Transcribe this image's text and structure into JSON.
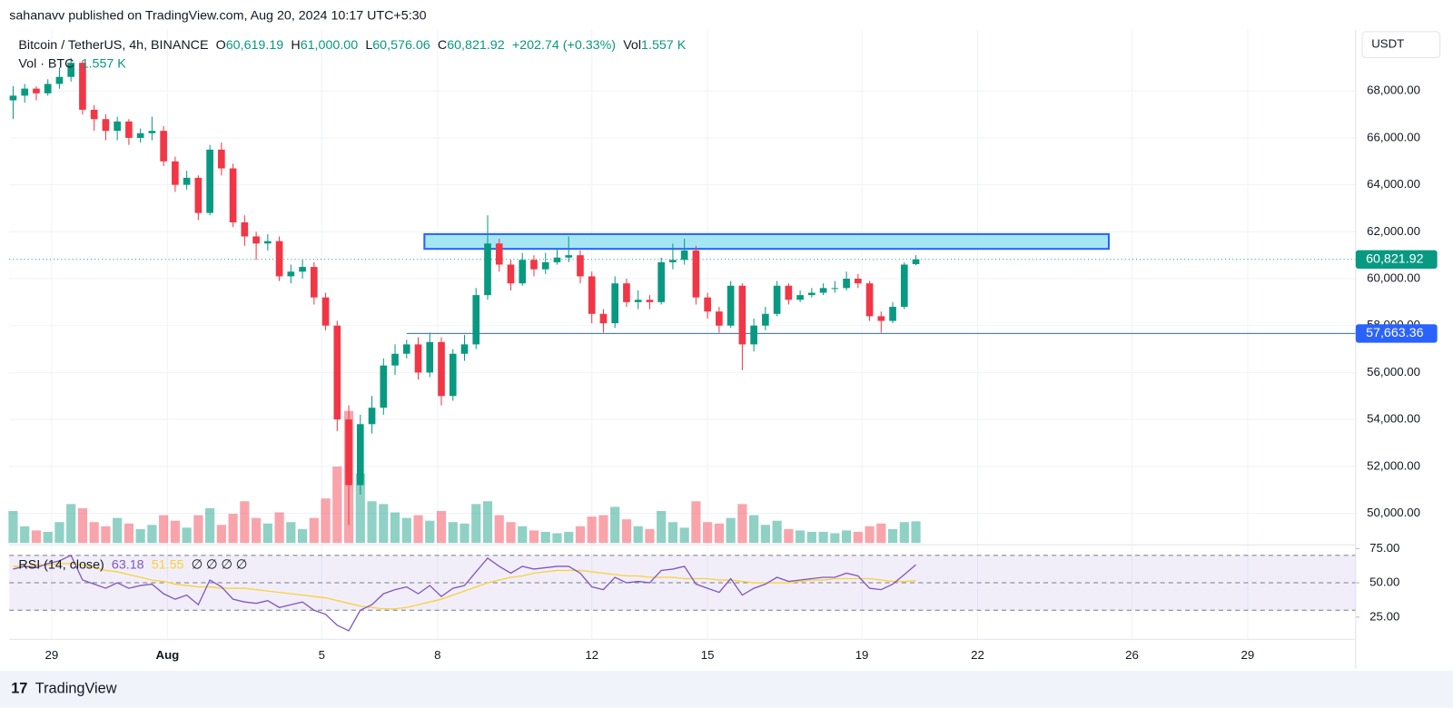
{
  "header": {
    "publisher": "sahanavv published on TradingView.com, Aug 20, 2024 10:17 UTC+5:30"
  },
  "footer": {
    "brand": "TradingView"
  },
  "chart_data": {
    "type": "candlestick",
    "title": "Bitcoin / TetherUS, 4h, BINANCE",
    "currency": "USDT",
    "legend": {
      "open_label": "O",
      "open": "60,619.19",
      "high_label": "H",
      "high": "61,000.00",
      "low_label": "L",
      "low": "60,576.06",
      "close_label": "C",
      "close": "60,821.92",
      "change": "+202.74 (+0.33%)",
      "vol_label": "Vol",
      "vol": "1.557 K"
    },
    "up_color": "#089981",
    "down_color": "#f23645",
    "grid": true,
    "x": [
      -1,
      -0.7,
      -0.4,
      -0.1,
      0.2,
      0.5,
      0.8,
      1.1,
      1.4,
      1.7,
      2,
      2.3,
      2.6,
      2.9,
      3.2,
      3.5,
      3.8,
      4.1,
      4.4,
      4.7,
      5,
      5.3,
      5.6,
      5.9,
      6.2,
      6.5,
      6.8,
      7.1,
      7.4,
      7.7,
      8,
      8.3,
      8.6,
      8.9,
      9.2,
      9.5,
      9.8,
      10.1,
      10.4,
      10.7,
      11,
      11.3,
      11.6,
      11.9,
      12.2,
      12.5,
      12.8,
      13.1,
      13.4,
      13.7,
      14,
      14.3,
      14.6,
      14.9,
      15.2,
      15.5,
      15.8,
      16.1,
      16.4,
      16.7,
      17,
      17.3,
      17.6,
      17.9,
      18.2,
      18.5,
      18.8,
      19.1,
      19.4,
      19.7,
      20,
      20.3,
      20.6,
      20.9,
      21.2,
      21.5,
      21.8,
      22.1,
      22.4
    ],
    "xlim": [
      -1.1,
      33.8
    ],
    "xticks": [
      {
        "value": 0,
        "label": "29"
      },
      {
        "value": 3,
        "label": "Aug"
      },
      {
        "value": 7,
        "label": "5"
      },
      {
        "value": 10,
        "label": "8"
      },
      {
        "value": 14,
        "label": "12"
      },
      {
        "value": 17,
        "label": "15"
      },
      {
        "value": 21,
        "label": "19"
      },
      {
        "value": 24,
        "label": "22"
      },
      {
        "value": 28,
        "label": "26"
      },
      {
        "value": 31,
        "label": "29"
      }
    ],
    "open": [
      67600,
      67800,
      68100,
      67900,
      68300,
      68600,
      69200,
      67200,
      66800,
      66300,
      66700,
      66000,
      66200,
      66300,
      65000,
      64000,
      64300,
      62800,
      65500,
      64700,
      62400,
      61800,
      61500,
      61600,
      60100,
      60300,
      60500,
      59200,
      58000,
      54000,
      51200,
      53800,
      54500,
      56300,
      56800,
      57200,
      56000,
      57300,
      55000,
      56800,
      57200,
      59300,
      61500,
      60600,
      59800,
      60800,
      60400,
      60700,
      60900,
      61000,
      60100,
      58500,
      58100,
      59800,
      59000,
      59100,
      59000,
      60700,
      60800,
      61200,
      59200,
      58600,
      58000,
      59700,
      57200,
      58000,
      58500,
      59700,
      59100,
      59300,
      59400,
      59600,
      59600,
      60000,
      59800,
      58400,
      58200,
      58800,
      60619.19
    ],
    "high": [
      68200,
      68300,
      68200,
      68500,
      69000,
      69400,
      69300,
      67400,
      67000,
      66900,
      66800,
      66400,
      66900,
      66500,
      65200,
      64600,
      64400,
      65700,
      65800,
      64900,
      62700,
      62000,
      61900,
      61800,
      60600,
      60800,
      60700,
      59400,
      58200,
      54600,
      54200,
      55000,
      56600,
      57200,
      57400,
      57500,
      57700,
      57500,
      57000,
      57600,
      59600,
      62700,
      61700,
      60800,
      61100,
      61000,
      61100,
      61300,
      61800,
      61200,
      60300,
      58700,
      60100,
      60000,
      59500,
      59300,
      60900,
      61500,
      61700,
      61400,
      59400,
      58800,
      59900,
      59800,
      58300,
      58800,
      59900,
      59800,
      59500,
      59600,
      59800,
      59900,
      60300,
      60200,
      59900,
      58600,
      59000,
      60700,
      61000
    ],
    "low": [
      66800,
      67500,
      67600,
      67800,
      68100,
      68400,
      67000,
      66300,
      65900,
      65900,
      65700,
      65800,
      65900,
      64800,
      63700,
      63800,
      62500,
      62700,
      64400,
      62200,
      61400,
      60800,
      61200,
      59900,
      59800,
      60000,
      58900,
      57800,
      53500,
      49500,
      50800,
      53400,
      54200,
      55900,
      56600,
      55700,
      55800,
      54600,
      54800,
      56500,
      57000,
      59100,
      60300,
      59500,
      59700,
      60100,
      60200,
      60600,
      60700,
      59800,
      58100,
      57700,
      57900,
      58800,
      58700,
      58700,
      58900,
      60400,
      60600,
      58900,
      58300,
      57700,
      57900,
      56100,
      56900,
      57800,
      58400,
      58900,
      59000,
      59200,
      59300,
      59400,
      59500,
      59600,
      58200,
      57700,
      58100,
      58700,
      60576.06
    ],
    "close": [
      67800,
      68100,
      67900,
      68300,
      68600,
      69200,
      67200,
      66800,
      66300,
      66700,
      66000,
      66200,
      66300,
      65000,
      64000,
      64300,
      62800,
      65500,
      64700,
      62400,
      61800,
      61500,
      61600,
      60100,
      60300,
      60500,
      59200,
      58000,
      54000,
      51200,
      53800,
      54500,
      56300,
      56800,
      57200,
      56000,
      57300,
      55000,
      56800,
      57200,
      59300,
      61500,
      60600,
      59800,
      60800,
      60400,
      60700,
      60900,
      61000,
      60100,
      58500,
      58100,
      59800,
      59000,
      59100,
      59000,
      60700,
      60800,
      61200,
      59200,
      58600,
      58000,
      59700,
      57200,
      58000,
      58500,
      59700,
      59100,
      59300,
      59400,
      59600,
      59600,
      60000,
      59800,
      58400,
      58200,
      58800,
      60600,
      60821.92
    ],
    "ylim": [
      48737,
      70290
    ],
    "yticks": [
      {
        "value": 50000,
        "label": "50,000.00"
      },
      {
        "value": 52000,
        "label": "52,000.00"
      },
      {
        "value": 54000,
        "label": "54,000.00"
      },
      {
        "value": 56000,
        "label": "56,000.00"
      },
      {
        "value": 58000,
        "label": "58,000.00"
      },
      {
        "value": 60000,
        "label": "60,000.00"
      },
      {
        "value": 62000,
        "label": "62,000.00"
      },
      {
        "value": 64000,
        "label": "64,000.00"
      },
      {
        "value": 66000,
        "label": "66,000.00"
      },
      {
        "value": 68000,
        "label": "68,000.00"
      }
    ],
    "last_price": {
      "value": 60821.92,
      "label": "60,821.92"
    },
    "level": {
      "value": 57663.36,
      "label": "57,663.36",
      "color": "#2962ff",
      "x0": 9.2
    },
    "zone": {
      "low": 61270,
      "high": 61900,
      "x0": 9.66,
      "x1": 27.4,
      "color": "#a5e6f3",
      "border": "#2962ff"
    },
    "volume": {
      "name": "Vol · BTC",
      "value_label": "1.557 K",
      "ylim": [
        0,
        10
      ],
      "values": [
        2.3,
        1.2,
        0.9,
        0.8,
        1.5,
        2.8,
        2.5,
        1.5,
        1.2,
        1.8,
        1.4,
        1.0,
        1.3,
        2.0,
        1.6,
        1.1,
        2.0,
        2.5,
        1.3,
        2.1,
        3.0,
        1.8,
        1.4,
        2.2,
        1.5,
        1.0,
        1.8,
        3.2,
        5.5,
        9.5,
        5.0,
        3.0,
        2.8,
        2.2,
        1.8,
        2.0,
        1.6,
        2.3,
        1.5,
        1.4,
        2.8,
        3.0,
        2.0,
        1.5,
        1.2,
        0.9,
        0.8,
        0.7,
        0.8,
        1.2,
        1.9,
        2.0,
        2.6,
        1.7,
        1.2,
        1.0,
        2.3,
        1.5,
        1.1,
        3.0,
        1.5,
        1.4,
        1.8,
        2.8,
        2.0,
        1.3,
        1.6,
        1.0,
        0.9,
        0.8,
        0.8,
        0.7,
        0.9,
        0.8,
        1.2,
        1.4,
        1.0,
        1.5,
        1.557
      ]
    },
    "rsi": {
      "title": "RSI (14, close)",
      "value_label": "63.18",
      "ma_label": "51.55",
      "extra": "∅ ∅ ∅ ∅",
      "color": "#7e57c2",
      "ma_color": "#f7d23b",
      "ylim": [
        8.8,
        77.7
      ],
      "yticks": [
        {
          "value": 25,
          "label": "25.00"
        },
        {
          "value": 50,
          "label": "50.00"
        },
        {
          "value": 75,
          "label": "75.00"
        }
      ],
      "upper_band": 70,
      "middle_band": 50,
      "lower_band": 30,
      "values": [
        60,
        62,
        61,
        64,
        66,
        70,
        52,
        49,
        46,
        50,
        46,
        48,
        49,
        42,
        38,
        41,
        34,
        52,
        47,
        38,
        36,
        35,
        37,
        32,
        34,
        36,
        30,
        27,
        19,
        15,
        30,
        34,
        42,
        45,
        47,
        42,
        48,
        40,
        46,
        48,
        58,
        68,
        62,
        57,
        62,
        60,
        61,
        62,
        62,
        57,
        47,
        45,
        54,
        50,
        51,
        50,
        59,
        60,
        62,
        49,
        46,
        43,
        53,
        41,
        46,
        49,
        54,
        51,
        52,
        53,
        54,
        54,
        57,
        55,
        46,
        45,
        49,
        56,
        63.18
      ],
      "ma": [
        62,
        62,
        63,
        63,
        64,
        64,
        63,
        61,
        59,
        58,
        56,
        54,
        52,
        51,
        49,
        48,
        47,
        47,
        46,
        46,
        46,
        45,
        44,
        43,
        42,
        41,
        40,
        39,
        37,
        35,
        33,
        32,
        31,
        31,
        32,
        34,
        36,
        38,
        41,
        44,
        47,
        50,
        52,
        54,
        55,
        57,
        58,
        59,
        59,
        59,
        58,
        57,
        56,
        55,
        55,
        54,
        54,
        54,
        53,
        53,
        53,
        52,
        52,
        51,
        50,
        50,
        50,
        50,
        51,
        52,
        52,
        53,
        53,
        53,
        53,
        52,
        51,
        51,
        51.55
      ]
    }
  }
}
